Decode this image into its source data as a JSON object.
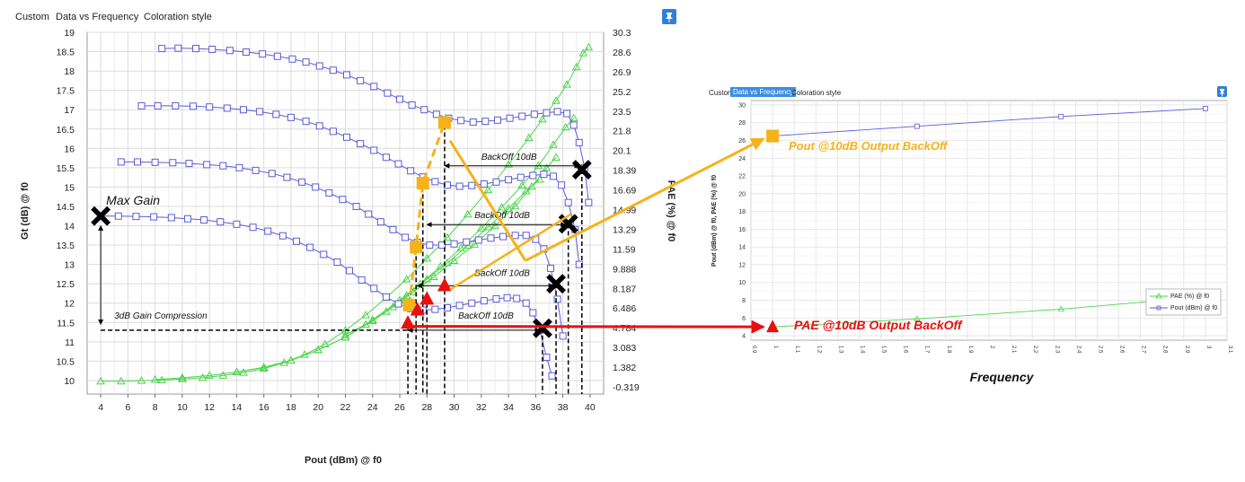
{
  "left_panel": {
    "tabs": [
      "Custom",
      "Data vs Frequency",
      "Coloration style"
    ],
    "pin_icon": "pin-icon"
  },
  "right_panel": {
    "tabs": [
      "Custom",
      "Data vs Frequency",
      "Coloration style"
    ],
    "active_tab": 1,
    "pin_icon": "pin-icon"
  },
  "annotations": {
    "max_gain": "Max Gain",
    "compression": "3dB Gain Compression",
    "backoff": "BackOff 10dB",
    "pout_callout": "Pout @10dB Output BackOff",
    "pae_callout": "PAE @10dB Output BackOff",
    "frequency_label": "Frequency"
  },
  "colors": {
    "gain_series": "#5b5bd6",
    "pae_series": "#4cd44c",
    "orange": "#f5b21a",
    "red": "#e81010",
    "marker_black": "#000000"
  },
  "chart_data": [
    {
      "type": "line",
      "xlabel": "Pout (dBm) @ f0",
      "ylabel": "Gt (dB) @ f0",
      "y2label": "PAE (%) @ f0",
      "xlim": [
        3,
        41
      ],
      "ylim": [
        9.65,
        19
      ],
      "y2lim": [
        -0.9,
        30.3
      ],
      "xticks": [
        "4",
        "6",
        "8",
        "10",
        "12",
        "14",
        "16",
        "18",
        "20",
        "22",
        "24",
        "26",
        "28",
        "30",
        "32",
        "34",
        "36",
        "38",
        "40"
      ],
      "yticks": [
        "19",
        "18.5",
        "18",
        "17.5",
        "17",
        "16.5",
        "16",
        "15.5",
        "15",
        "14.5",
        "14",
        "13.5",
        "13",
        "12.5",
        "12",
        "11.5",
        "11",
        "10.5",
        "10"
      ],
      "y2ticks": [
        "30.3",
        "28.6",
        "26.9",
        "25.2",
        "23.5",
        "21.8",
        "20.1",
        "18.39",
        "16.69",
        "14.99",
        "13.29",
        "11.59",
        "9.888",
        "8.187",
        "6.486",
        "4.784",
        "3.083",
        "1.382",
        "-0.319"
      ],
      "grid": true,
      "gain_series": [
        {
          "x": [
            8.5,
            9.7,
            11,
            12.2,
            13.5,
            14.7,
            15.9,
            17,
            18.1,
            19.1,
            20.1,
            21.1,
            22.1,
            23.1,
            24.1,
            25.1,
            26,
            26.9,
            27.8,
            28.7,
            29.6,
            30.5,
            31.4,
            32.3,
            33.2,
            34.1,
            35,
            35.9,
            36.8,
            37.6,
            38.3,
            38.8,
            39.2,
            39.6,
            39.9
          ],
          "y": [
            18.58,
            18.59,
            18.58,
            18.56,
            18.53,
            18.49,
            18.44,
            18.38,
            18.31,
            18.23,
            18.13,
            18.02,
            17.9,
            17.75,
            17.6,
            17.43,
            17.27,
            17.12,
            17.0,
            16.88,
            16.78,
            16.72,
            16.68,
            16.7,
            16.73,
            16.78,
            16.83,
            16.88,
            16.92,
            16.95,
            16.9,
            16.6,
            16.15,
            15.5,
            14.6
          ]
        },
        {
          "x": [
            7,
            8.2,
            9.5,
            10.8,
            12,
            13.3,
            14.5,
            15.7,
            16.9,
            18,
            19.1,
            20.1,
            21.1,
            22.1,
            23.1,
            24.1,
            25,
            25.9,
            26.8,
            27.7,
            28.6,
            29.5,
            30.4,
            31.3,
            32.2,
            33.1,
            34,
            34.9,
            35.8,
            36.6,
            37.3,
            37.9,
            38.4,
            38.9,
            39.2
          ],
          "y": [
            17.1,
            17.1,
            17.1,
            17.09,
            17.07,
            17.04,
            17.0,
            16.95,
            16.88,
            16.8,
            16.7,
            16.58,
            16.44,
            16.29,
            16.12,
            15.95,
            15.77,
            15.6,
            15.42,
            15.26,
            15.14,
            15.05,
            15.02,
            15.04,
            15.08,
            15.13,
            15.19,
            15.25,
            15.3,
            15.33,
            15.28,
            15.05,
            14.6,
            13.9,
            13.0
          ]
        },
        {
          "x": [
            5.5,
            6.7,
            8,
            9.3,
            10.5,
            11.8,
            13,
            14.2,
            15.4,
            16.6,
            17.7,
            18.8,
            19.8,
            20.8,
            21.8,
            22.8,
            23.7,
            24.6,
            25.5,
            26.4,
            27.3,
            28.2,
            29.1,
            30,
            30.9,
            31.8,
            32.7,
            33.6,
            34.5,
            35.3,
            36,
            36.6,
            37.1,
            37.6,
            38
          ],
          "y": [
            15.65,
            15.65,
            15.64,
            15.63,
            15.61,
            15.58,
            15.55,
            15.5,
            15.43,
            15.35,
            15.25,
            15.13,
            15.0,
            14.85,
            14.68,
            14.5,
            14.3,
            14.1,
            13.9,
            13.7,
            13.57,
            13.5,
            13.5,
            13.53,
            13.58,
            13.63,
            13.68,
            13.72,
            13.75,
            13.75,
            13.65,
            13.4,
            12.9,
            12.1,
            11.15
          ]
        },
        {
          "x": [
            4,
            5.3,
            6.6,
            7.9,
            9.2,
            10.4,
            11.6,
            12.8,
            14,
            15.2,
            16.3,
            17.4,
            18.4,
            19.4,
            20.4,
            21.4,
            22.3,
            23.2,
            24.1,
            25,
            25.9,
            26.8,
            27.7,
            28.6,
            29.5,
            30.4,
            31.3,
            32.2,
            33.1,
            33.9,
            34.6,
            35.3,
            35.8,
            36.3,
            36.8,
            37.2
          ],
          "y": [
            14.25,
            14.25,
            14.24,
            14.23,
            14.21,
            14.18,
            14.15,
            14.1,
            14.04,
            13.96,
            13.86,
            13.74,
            13.6,
            13.44,
            13.26,
            13.06,
            12.84,
            12.6,
            12.38,
            12.16,
            11.98,
            11.86,
            11.82,
            11.84,
            11.88,
            11.94,
            12.0,
            12.06,
            12.11,
            12.14,
            12.12,
            12.0,
            11.75,
            11.3,
            10.6,
            10.12
          ]
        }
      ],
      "pae_series": [
        {
          "x": [
            4,
            5.5,
            7,
            8.5,
            10,
            11.5,
            13,
            14.5,
            16,
            17.5,
            19,
            20.5,
            22,
            23.5,
            25,
            26.5,
            28,
            29.5,
            31,
            32.5,
            34,
            35.5,
            36.5,
            37.5,
            38.3,
            39,
            39.5,
            39.9
          ],
          "y": [
            0.2,
            0.2,
            0.25,
            0.3,
            0.4,
            0.5,
            0.7,
            0.95,
            1.3,
            1.8,
            2.5,
            3.4,
            4.6,
            5.9,
            7.4,
            9.0,
            10.8,
            12.6,
            14.6,
            16.7,
            18.9,
            21.2,
            22.8,
            24.4,
            25.8,
            27.3,
            28.5,
            29.0
          ]
        },
        {
          "x": [
            8,
            10,
            12,
            14,
            16,
            18,
            20,
            22,
            24,
            26,
            27.5,
            29,
            30.5,
            32,
            33.5,
            35,
            36.2,
            37.3,
            38.2,
            38.8
          ],
          "y": [
            0.35,
            0.5,
            0.7,
            1.0,
            1.4,
            2.0,
            2.9,
            4.0,
            5.5,
            7.2,
            8.6,
            10.1,
            11.7,
            13.4,
            15.2,
            17.1,
            18.8,
            20.6,
            22.1,
            22.9
          ]
        },
        {
          "x": [
            14,
            16,
            18,
            20,
            22,
            24,
            25.5,
            27,
            28.5,
            30,
            31.5,
            33,
            34.5,
            35.7,
            36.8,
            37.5
          ],
          "y": [
            1.0,
            1.4,
            2.0,
            2.9,
            4.0,
            5.4,
            6.6,
            7.9,
            9.2,
            10.6,
            12.0,
            13.6,
            15.3,
            17.0,
            18.6,
            19.5
          ]
        },
        {
          "x": [
            22,
            23.5,
            25,
            26.5,
            28,
            29.5,
            31,
            32.5,
            34,
            35.3,
            36.3
          ],
          "y": [
            4.2,
            5.1,
            6.2,
            7.6,
            9.0,
            10.4,
            11.9,
            13.5,
            15.1,
            16.6,
            17.6
          ]
        }
      ],
      "markers": {
        "black_x": [
          {
            "x": 4.0,
            "y": 14.25
          },
          {
            "x": 39.4,
            "y": 15.45
          },
          {
            "x": 38.4,
            "y": 14.05
          },
          {
            "x": 37.5,
            "y": 12.5
          },
          {
            "x": 36.5,
            "y": 11.35
          }
        ],
        "orange_squares": [
          {
            "x": 29.3,
            "y": 16.67
          },
          {
            "x": 27.7,
            "y": 15.1
          },
          {
            "x": 27.2,
            "y": 13.45
          },
          {
            "x": 26.7,
            "y": 11.95
          }
        ],
        "red_triangles": [
          {
            "x": 29.3,
            "y": 12.45
          },
          {
            "x": 28.0,
            "y": 12.1
          },
          {
            "x": 27.3,
            "y": 11.82
          },
          {
            "x": 26.6,
            "y": 11.48
          }
        ]
      }
    },
    {
      "type": "line",
      "ylabel": "Pout (dBm) @ f0, PAE (%) @ f0",
      "xlabel": "Frequency",
      "xlim": [
        0.9,
        3.1
      ],
      "ylim": [
        3.5,
        30.5
      ],
      "xticks": [
        "0.9",
        "1",
        "1.1",
        "1.2",
        "1.3",
        "1.4",
        "1.5",
        "1.6",
        "1.7",
        "1.8",
        "1.9",
        "2",
        "2.1",
        "2.2",
        "2.3",
        "2.4",
        "2.5",
        "2.6",
        "2.7",
        "2.8",
        "2.9",
        "3",
        "3.1"
      ],
      "yticks": [
        "30",
        "28",
        "26",
        "24",
        "22",
        "20",
        "18",
        "16",
        "14",
        "12",
        "10",
        "8",
        "6",
        "4"
      ],
      "grid": true,
      "legend": "bottom-right",
      "series": [
        {
          "name": "PAE (%) @ f0",
          "x": [
            1,
            1.667,
            2.333,
            3
          ],
          "y": [
            5.0,
            5.9,
            7.0,
            8.4
          ]
        },
        {
          "name": "Pout (dBm) @ f0",
          "x": [
            1,
            1.667,
            2.333,
            3
          ],
          "y": [
            26.5,
            27.6,
            28.7,
            29.6
          ]
        }
      ]
    }
  ]
}
